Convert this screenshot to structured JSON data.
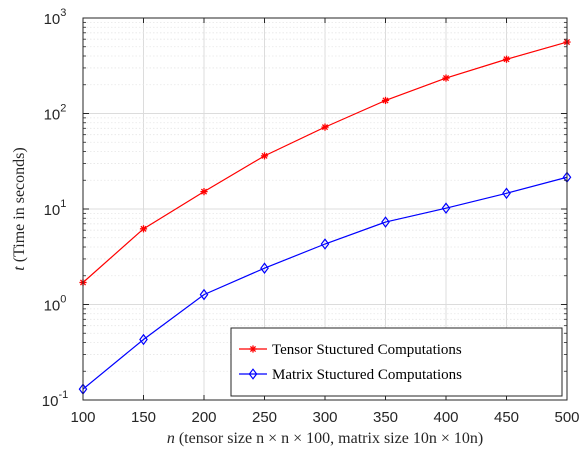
{
  "chart_data": {
    "type": "line",
    "x": [
      100,
      150,
      200,
      250,
      300,
      350,
      400,
      450,
      500
    ],
    "series": [
      {
        "name": "Tensor Stuctured Computations",
        "color": "#ff0000",
        "marker": "asterisk",
        "values": [
          1.7,
          6.2,
          15.2,
          36,
          72,
          137,
          235,
          370,
          560
        ]
      },
      {
        "name": "Matrix Stuctured Computations",
        "color": "#0000ff",
        "marker": "diamond",
        "values": [
          0.13,
          0.43,
          1.27,
          2.4,
          4.3,
          7.3,
          10.2,
          14.6,
          21.5
        ]
      }
    ],
    "xlabel": "n (tensor size n × n × 100, matrix size 10n × 10n)",
    "ylabel": "t (Time in seconds)",
    "xlim": [
      100,
      500
    ],
    "ylim": [
      0.1,
      1000
    ],
    "yscale": "log",
    "xticks": [
      "100",
      "150",
      "200",
      "250",
      "300",
      "350",
      "400",
      "450",
      "500"
    ],
    "yticks": [
      {
        "base": "10",
        "exp": "-1"
      },
      {
        "base": "10",
        "exp": "0"
      },
      {
        "base": "10",
        "exp": "1"
      },
      {
        "base": "10",
        "exp": "2"
      },
      {
        "base": "10",
        "exp": "3"
      }
    ],
    "grid": true,
    "legend_position": "bottom-right"
  }
}
